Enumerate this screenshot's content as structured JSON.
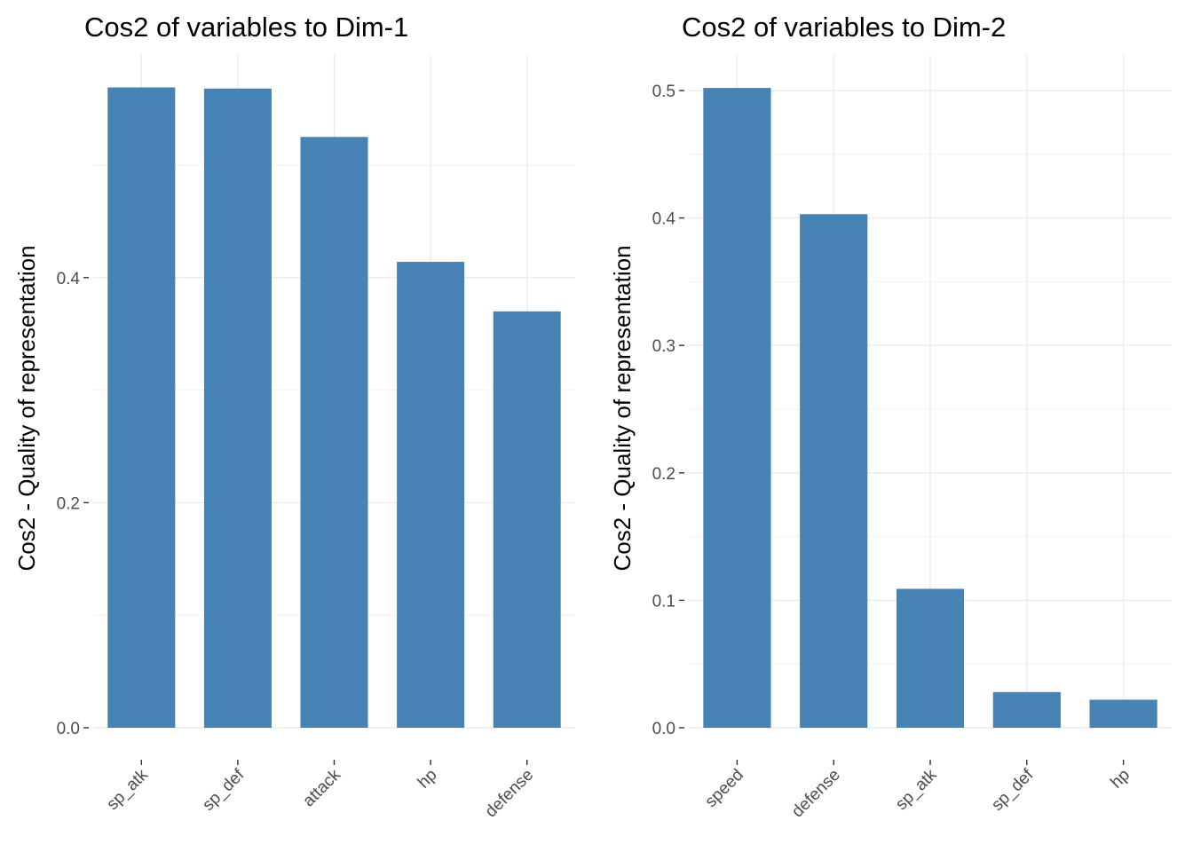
{
  "chart_data": [
    {
      "type": "bar",
      "title": "Cos2 of variables to Dim-1",
      "ylabel": "Cos2 - Quality of representation",
      "xlabel": "",
      "categories": [
        "sp_atk",
        "sp_def",
        "attack",
        "hp",
        "defense"
      ],
      "values": [
        0.569,
        0.568,
        0.525,
        0.414,
        0.37
      ],
      "ylim": [
        0,
        0.6
      ],
      "yticks": [
        0.0,
        0.2,
        0.4
      ],
      "ytick_labels": [
        "0.0",
        "0.2",
        "0.4"
      ],
      "bar_color": "#4682B4",
      "grid": true,
      "legend": "none"
    },
    {
      "type": "bar",
      "title": "Cos2 of variables to Dim-2",
      "ylabel": "Cos2 - Quality of representation",
      "xlabel": "",
      "categories": [
        "speed",
        "defense",
        "sp_atk",
        "sp_def",
        "hp"
      ],
      "values": [
        0.502,
        0.403,
        0.109,
        0.028,
        0.022
      ],
      "ylim": [
        0,
        0.525
      ],
      "yticks": [
        0.0,
        0.1,
        0.2,
        0.3,
        0.4,
        0.5
      ],
      "ytick_labels": [
        "0.0",
        "0.1",
        "0.2",
        "0.3",
        "0.4",
        "0.5"
      ],
      "bar_color": "#4682B4",
      "grid": true,
      "legend": "none"
    }
  ]
}
